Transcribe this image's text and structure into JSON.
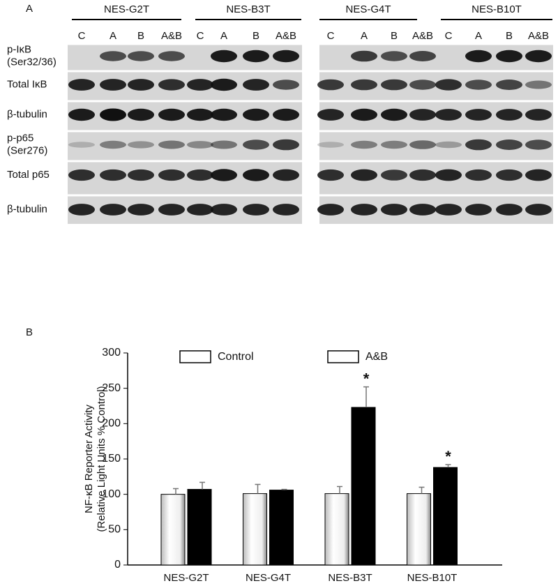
{
  "panel_a": {
    "label": "A",
    "groups": [
      "NES-G2T",
      "NES-B3T",
      "NES-G4T",
      "NES-B10T"
    ],
    "lanes": [
      "C",
      "A",
      "B",
      "A&B",
      "C",
      "A",
      "B",
      "A&B",
      "C",
      "A",
      "B",
      "A&B",
      "C",
      "A",
      "B",
      "A&B"
    ],
    "rows": [
      [
        "p-IκB",
        "(Ser32/36)"
      ],
      [
        "Total  IκB"
      ],
      [
        "β-tubulin"
      ],
      [
        "p-p65",
        "(Ser276)"
      ],
      [
        "Total  p65"
      ],
      [
        "β-tubulin"
      ]
    ]
  },
  "chart_data": {
    "type": "bar",
    "label": "B",
    "ylabel": [
      "NF-κB  Reporter  Activity",
      "(Relative  Light  Units  % Control)"
    ],
    "categories": [
      "NES-G2T",
      "NES-G4T",
      "NES-B3T",
      "NES-B10T"
    ],
    "series": [
      {
        "name": "Control",
        "color": "#ffffff",
        "values": [
          100,
          101,
          101,
          101
        ],
        "errors": [
          8,
          13,
          10,
          9
        ]
      },
      {
        "name": "A&B",
        "color": "#000000",
        "values": [
          107,
          106,
          223,
          138
        ],
        "errors": [
          10,
          1,
          29,
          4
        ]
      }
    ],
    "annotations": [
      {
        "text": "*",
        "category": "NES-B3T",
        "series": "A&B"
      },
      {
        "text": "*",
        "category": "NES-B10T",
        "series": "A&B"
      }
    ],
    "ylim": [
      0,
      300
    ],
    "yticks": [
      0,
      50,
      100,
      150,
      200,
      250,
      300
    ],
    "grid": false
  }
}
